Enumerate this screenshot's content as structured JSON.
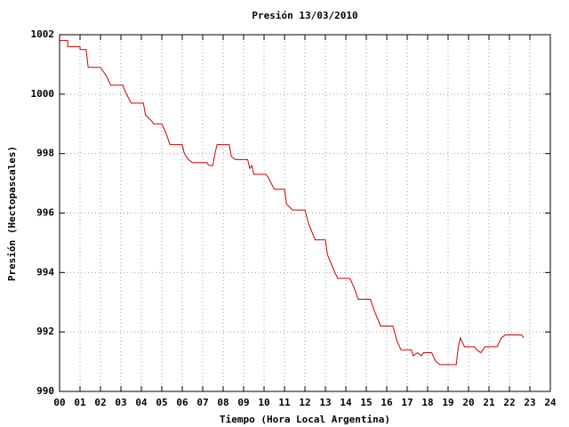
{
  "chart_data": {
    "type": "line",
    "title": "Presión 13/03/2010",
    "xlabel": "Tiempo (Hora Local Argentina)",
    "ylabel": "Presión (Hectopascales)",
    "color": "#cc0000",
    "grid": true,
    "x": [
      0,
      0.4,
      0.4,
      1.0,
      1.0,
      1.3,
      1.4,
      2.0,
      2.1,
      2.3,
      2.5,
      3.1,
      3.2,
      3.5,
      4.1,
      4.2,
      4.5,
      4.6,
      5.0,
      5.2,
      5.4,
      6.0,
      6.1,
      6.3,
      6.5,
      7.2,
      7.3,
      7.5,
      7.6,
      7.7,
      8.3,
      8.4,
      8.6,
      9.2,
      9.3,
      9.4,
      9.5,
      10.1,
      10.2,
      10.5,
      11.0,
      11.1,
      11.4,
      12.0,
      12.2,
      12.5,
      13.0,
      13.1,
      13.4,
      13.6,
      14.2,
      14.4,
      14.6,
      15.2,
      15.4,
      15.7,
      16.3,
      16.5,
      16.7,
      17.2,
      17.3,
      17.5,
      17.7,
      17.8,
      18.2,
      18.4,
      18.6,
      19.4,
      19.5,
      19.6,
      19.8,
      20.3,
      20.4,
      20.6,
      20.8,
      21.4,
      21.6,
      21.8,
      22.6,
      22.7
    ],
    "values": [
      1001.8,
      1001.8,
      1001.6,
      1001.6,
      1001.5,
      1001.5,
      1000.9,
      1000.9,
      1000.8,
      1000.6,
      1000.3,
      1000.3,
      1000.1,
      999.7,
      999.7,
      999.3,
      999.1,
      999.0,
      999.0,
      998.7,
      998.3,
      998.3,
      998.0,
      997.8,
      997.7,
      997.7,
      997.6,
      997.6,
      998.0,
      998.3,
      998.3,
      997.9,
      997.8,
      997.8,
      997.5,
      997.6,
      997.3,
      997.3,
      997.2,
      996.8,
      996.8,
      996.3,
      996.1,
      996.1,
      995.6,
      995.1,
      995.1,
      994.6,
      994.1,
      993.8,
      993.8,
      993.5,
      993.1,
      993.1,
      992.7,
      992.2,
      992.2,
      991.7,
      991.4,
      991.4,
      991.2,
      991.3,
      991.2,
      991.3,
      991.3,
      991.0,
      990.9,
      990.9,
      991.5,
      991.8,
      991.5,
      991.5,
      991.4,
      991.3,
      991.5,
      991.5,
      991.8,
      991.9,
      991.9,
      991.8
    ],
    "xlim": [
      0,
      24
    ],
    "xticks": [
      {
        "value": 0,
        "label": "00"
      },
      {
        "value": 1,
        "label": "01"
      },
      {
        "value": 2,
        "label": "02"
      },
      {
        "value": 3,
        "label": "03"
      },
      {
        "value": 4,
        "label": "04"
      },
      {
        "value": 5,
        "label": "05"
      },
      {
        "value": 6,
        "label": "06"
      },
      {
        "value": 7,
        "label": "07"
      },
      {
        "value": 8,
        "label": "08"
      },
      {
        "value": 9,
        "label": "09"
      },
      10,
      11,
      12,
      13,
      14,
      15,
      16,
      17,
      18,
      19,
      20,
      21,
      22,
      23,
      24
    ],
    "ylim": [
      990,
      1002
    ],
    "yticks": [
      990,
      992,
      994,
      996,
      998,
      1000,
      1002
    ]
  }
}
